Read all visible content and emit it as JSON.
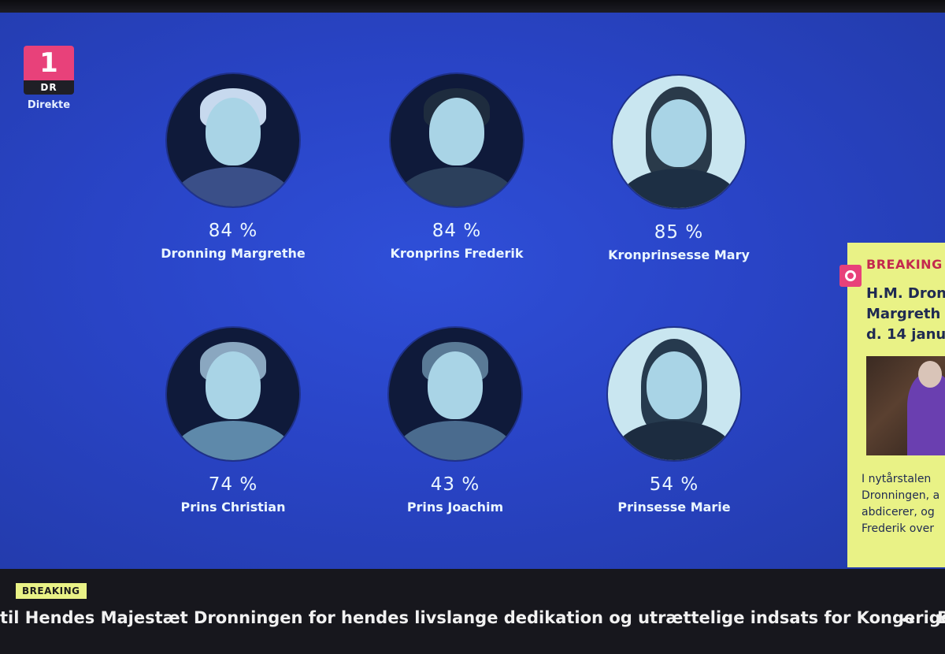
{
  "channel": {
    "number": "1",
    "brand": "DR",
    "status": "Direkte"
  },
  "people": [
    {
      "percent": "84 %",
      "name": "Dronning Margrethe"
    },
    {
      "percent": "84 %",
      "name": "Kronprins Frederik"
    },
    {
      "percent": "85 %",
      "name": "Kronprinsesse Mary"
    },
    {
      "percent": "74 %",
      "name": "Prins Christian"
    },
    {
      "percent": "43 %",
      "name": "Prins Joachim"
    },
    {
      "percent": "54 %",
      "name": "Prinsesse Marie"
    }
  ],
  "side_panel": {
    "label": "BREAKING",
    "headline": "H.M. Dron\nMargreth\nd. 14 janu",
    "text": "I nytårstalen\nDronningen, a\nabdicerer, og\nFrederik over"
  },
  "ticker": {
    "badge": "BREAKING",
    "text": "til Hendes Majestæt Dronningen for hendes livslange dedikation og utrættelige indsats for Kongeriget.\"",
    "separator": "••",
    "next_fragment": "B"
  },
  "colors": {
    "background": "#2944c6",
    "accent_pink": "#e8417a",
    "breaking_yellow": "#e9f286",
    "text_light": "#eaf6ff"
  }
}
